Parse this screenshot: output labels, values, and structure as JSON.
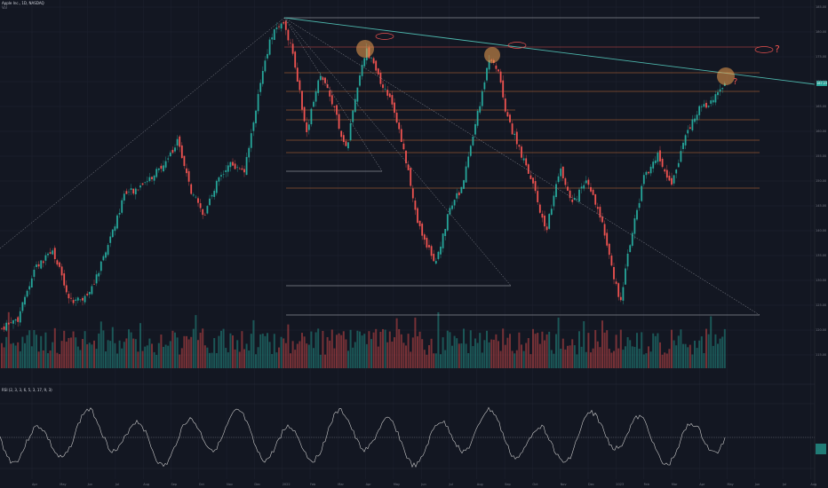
{
  "header": {
    "symbol_line": "Apple Inc., 1D, NASDAQ",
    "sub_line": "Vol"
  },
  "rsi_panel": {
    "label": "RSI (2, 3, 3, 6, 5, 3, 17, 9, 3)"
  },
  "colors": {
    "background": "#131722",
    "up": "#26a69a",
    "down": "#ef5350",
    "fib": "#e07a3a",
    "grid": "#1e2230",
    "trendline": "#4db6ac",
    "circle": "#f0a050",
    "rsi_line": "#c8c8c8"
  },
  "price_axis": {
    "ticks": [
      "185.00",
      "180.00",
      "175.00",
      "170.00",
      "165.00",
      "160.00",
      "155.00",
      "150.00",
      "145.00",
      "140.00",
      "135.00",
      "130.00",
      "125.00",
      "120.00",
      "115.00"
    ],
    "current_price": "167.23"
  },
  "time_axis": {
    "ticks": [
      "Apr",
      "May",
      "Jun",
      "Jul",
      "Aug",
      "Sep",
      "Oct",
      "Nov",
      "Dec",
      "2022",
      "Feb",
      "Mar",
      "Apr",
      "May",
      "Jun",
      "Jul",
      "Aug",
      "Sep",
      "Oct",
      "Nov",
      "Dec",
      "2023",
      "Feb",
      "Mar",
      "Apr",
      "May",
      "Jun",
      "Jul",
      "Aug"
    ]
  },
  "annotations": {
    "question_marks": [
      "?",
      "?"
    ]
  },
  "chart_data": {
    "type": "candlestick",
    "title": "Apple Inc., 1D, NASDAQ",
    "ylim": [
      110,
      185
    ],
    "trendline": {
      "from": [
        "2022-01-03",
        182.9
      ],
      "to": [
        "2023-05-01",
        168.0
      ]
    },
    "resistance_touches": [
      "2022-04-04",
      "2022-08-17",
      "2023-04-28"
    ]
  }
}
